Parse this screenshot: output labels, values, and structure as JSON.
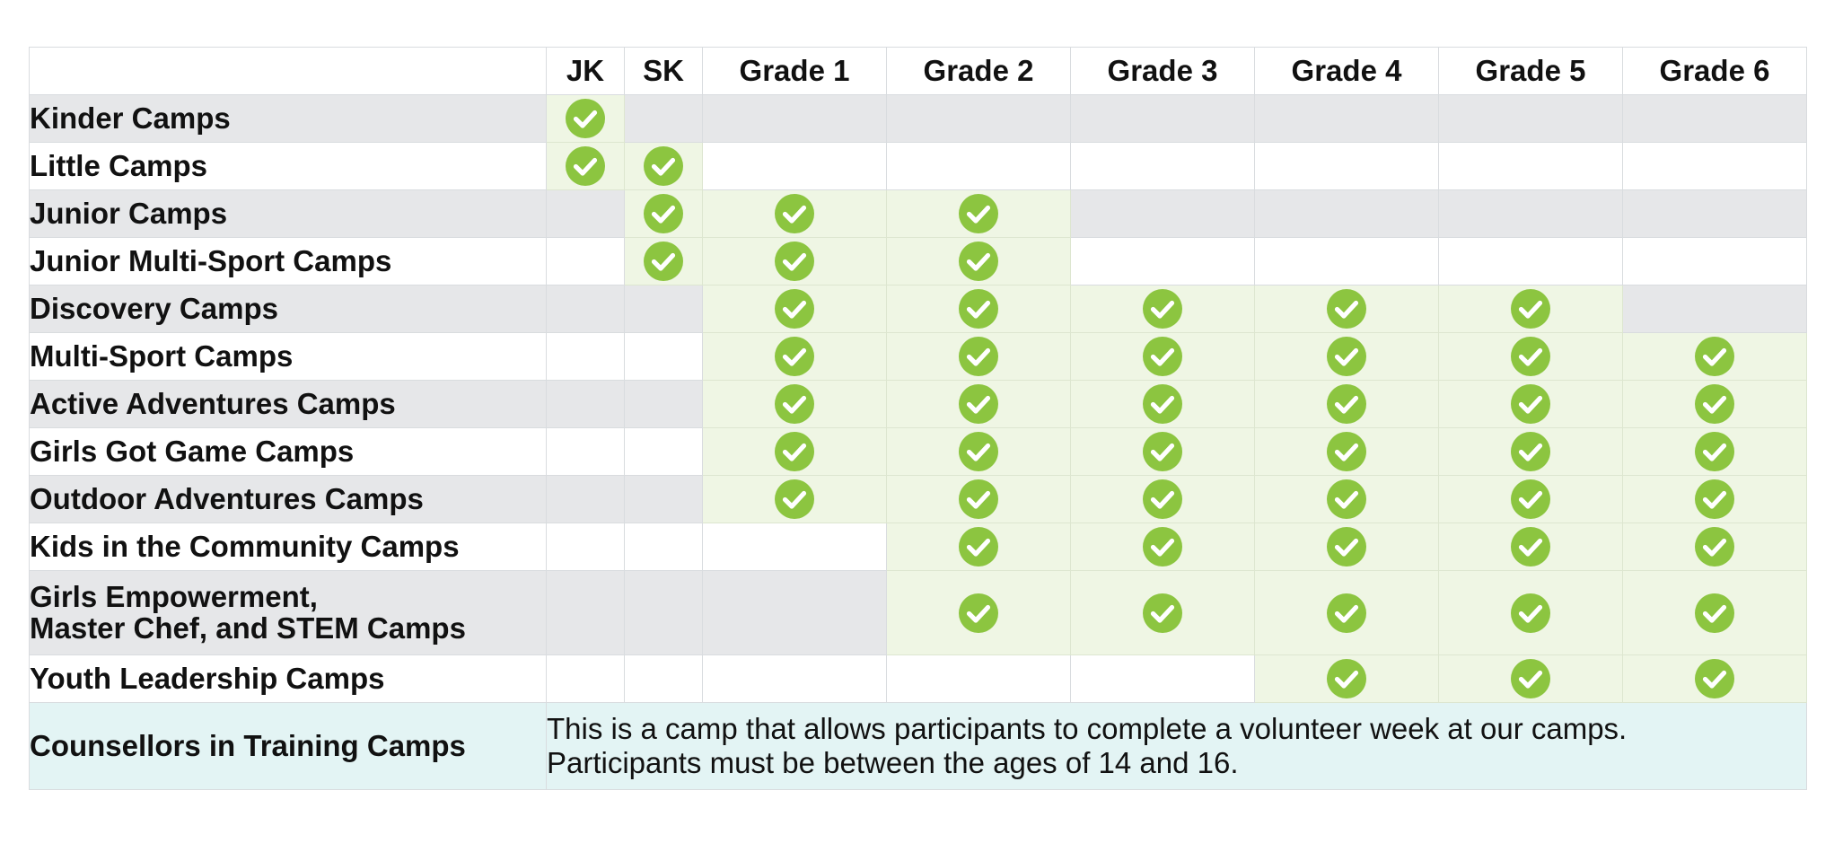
{
  "columns": [
    "JK",
    "SK",
    "Grade 1",
    "Grade 2",
    "Grade 3",
    "Grade 4",
    "Grade 5",
    "Grade 6"
  ],
  "colors": {
    "check_fill": "#8cc540",
    "check_mark": "#ffffff",
    "eligible_bg": "#eff6e4",
    "shade_bg": "#e6e7e9",
    "cit_bg": "#e3f4f4"
  },
  "rows": [
    {
      "label": "Kinder Camps",
      "eligible": [
        true,
        false,
        false,
        false,
        false,
        false,
        false,
        false
      ]
    },
    {
      "label": "Little Camps",
      "eligible": [
        true,
        true,
        false,
        false,
        false,
        false,
        false,
        false
      ]
    },
    {
      "label": "Junior Camps",
      "eligible": [
        false,
        true,
        true,
        true,
        false,
        false,
        false,
        false
      ]
    },
    {
      "label": "Junior Multi-Sport Camps",
      "eligible": [
        false,
        true,
        true,
        true,
        false,
        false,
        false,
        false
      ]
    },
    {
      "label": "Discovery Camps",
      "eligible": [
        false,
        false,
        true,
        true,
        true,
        true,
        true,
        false
      ]
    },
    {
      "label": "Multi-Sport Camps",
      "eligible": [
        false,
        false,
        true,
        true,
        true,
        true,
        true,
        true
      ]
    },
    {
      "label": "Active Adventures Camps",
      "eligible": [
        false,
        false,
        true,
        true,
        true,
        true,
        true,
        true
      ]
    },
    {
      "label": "Girls Got Game Camps",
      "eligible": [
        false,
        false,
        true,
        true,
        true,
        true,
        true,
        true
      ]
    },
    {
      "label": "Outdoor Adventures Camps",
      "eligible": [
        false,
        false,
        true,
        true,
        true,
        true,
        true,
        true
      ]
    },
    {
      "label": "Kids in the Community Camps",
      "eligible": [
        false,
        false,
        false,
        true,
        true,
        true,
        true,
        true
      ]
    },
    {
      "label_line1": "Girls Empowerment,",
      "label_line2": "Master Chef, and STEM Camps",
      "eligible": [
        false,
        false,
        false,
        true,
        true,
        true,
        true,
        true
      ]
    },
    {
      "label": "Youth Leadership Camps",
      "eligible": [
        false,
        false,
        false,
        false,
        false,
        true,
        true,
        true
      ]
    }
  ],
  "cit": {
    "label": "Counsellors in Training Camps",
    "line1": "This is a camp that allows participants to complete a volunteer week at our camps.",
    "line2": "Participants must be between the ages of 14 and 16."
  },
  "icons": {
    "eligible": "check-circle-icon"
  }
}
